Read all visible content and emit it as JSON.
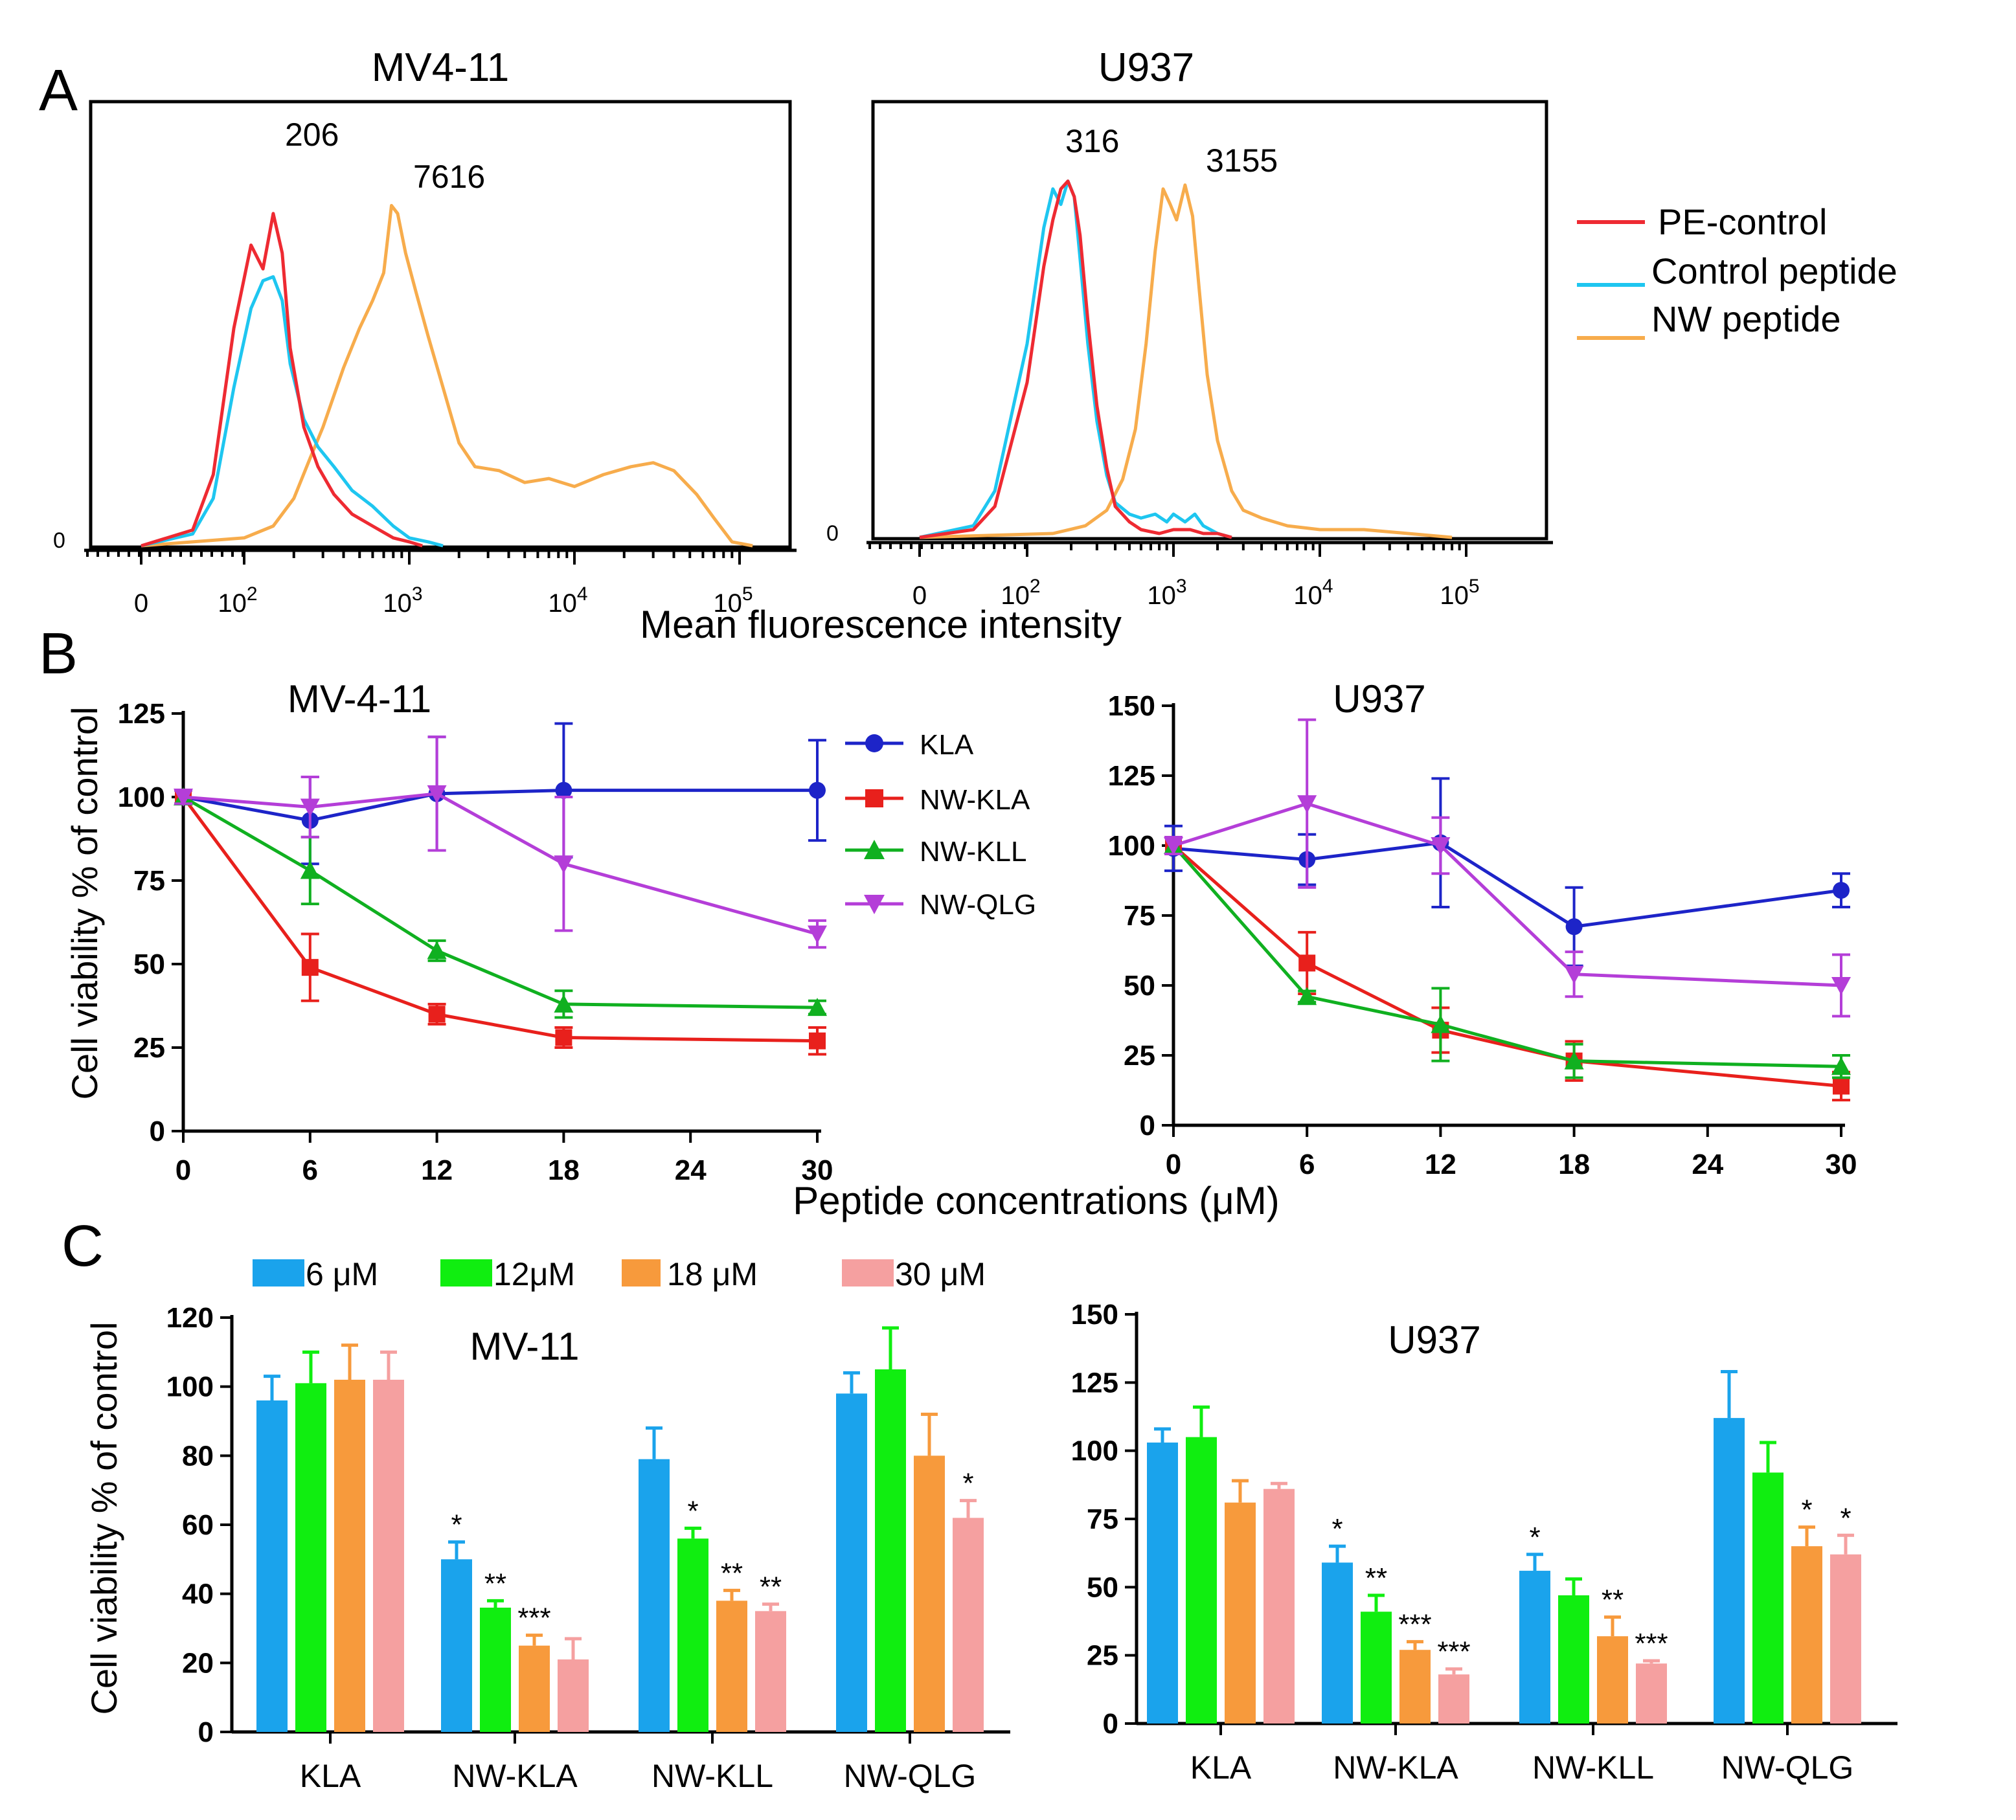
{
  "panel_labels": {
    "a": "A",
    "b": "B",
    "c": "C"
  },
  "colors": {
    "pe_control": "#ee2a32",
    "control_peptide": "#1ec6f0",
    "nw_peptide": "#f7ac4c",
    "kla": "#1d24c8",
    "nw_kla": "#e8201c",
    "nw_kll": "#10b020",
    "nw_qlg": "#b43ed8",
    "bar_6": "#1aa3ec",
    "bar_12": "#10ee10",
    "bar_18": "#f79a3c",
    "bar_30": "#f5a0a0"
  },
  "chart_data": [
    {
      "type": "line",
      "panel": "A",
      "title": "MV4-11",
      "xscale": "log",
      "x_tick_labels": [
        "0",
        "10^2",
        "10^3",
        "10^4",
        "10^5"
      ],
      "y_tick_labels": [
        "0"
      ],
      "series": [
        {
          "name": "PE-control",
          "peak_label": "206",
          "x": [
            0,
            50,
            70,
            90,
            110,
            130,
            150,
            170,
            190,
            230,
            280,
            350,
            450,
            600,
            800,
            1000,
            1200
          ],
          "y": [
            0,
            4,
            18,
            55,
            76,
            70,
            84,
            74,
            50,
            30,
            20,
            13,
            8,
            5,
            2,
            1,
            0
          ]
        },
        {
          "name": "Control peptide",
          "peak_label": "",
          "x": [
            0,
            50,
            70,
            90,
            110,
            130,
            150,
            170,
            190,
            230,
            280,
            350,
            450,
            600,
            800,
            1000,
            1300,
            1600
          ],
          "y": [
            0,
            3,
            12,
            40,
            60,
            67,
            68,
            62,
            46,
            32,
            25,
            20,
            14,
            10,
            5,
            2,
            1,
            0
          ]
        },
        {
          "name": "NW peptide",
          "peak_label": "7616",
          "x": [
            0,
            100,
            150,
            200,
            250,
            300,
            400,
            500,
            600,
            700,
            780,
            850,
            950,
            1100,
            1300,
            1600,
            2000,
            2500,
            3500,
            5000,
            7000,
            10000,
            15000,
            22000,
            30000,
            40000,
            55000,
            70000,
            90000,
            120000
          ],
          "y": [
            0,
            2,
            5,
            12,
            22,
            30,
            45,
            55,
            62,
            69,
            86,
            84,
            74,
            64,
            53,
            40,
            26,
            20,
            19,
            16,
            17,
            15,
            18,
            20,
            21,
            19,
            13,
            7,
            1,
            0
          ]
        }
      ]
    },
    {
      "type": "line",
      "panel": "A",
      "title": "U937",
      "xscale": "log",
      "x_tick_labels": [
        "0",
        "10^2",
        "10^3",
        "10^4",
        "10^5"
      ],
      "y_tick_labels": [
        "0"
      ],
      "xlabel": "Mean fluorescence intensity",
      "series": [
        {
          "name": "PE-control",
          "peak_label": "",
          "x": [
            0,
            50,
            70,
            100,
            130,
            150,
            170,
            190,
            210,
            230,
            260,
            300,
            350,
            400,
            500,
            600,
            800,
            1000,
            1300,
            1600,
            2000,
            2500
          ],
          "y": [
            0,
            2,
            8,
            40,
            70,
            82,
            90,
            92,
            88,
            78,
            56,
            34,
            18,
            8,
            4,
            2,
            1,
            2,
            2,
            1,
            1,
            0
          ]
        },
        {
          "name": "Control peptide",
          "peak_label": "316",
          "x": [
            0,
            50,
            70,
            100,
            130,
            150,
            170,
            190,
            210,
            230,
            260,
            300,
            350,
            400,
            500,
            600,
            750,
            900,
            1000,
            1200,
            1400,
            1600,
            2000,
            2500
          ],
          "y": [
            0,
            3,
            12,
            50,
            80,
            90,
            86,
            92,
            88,
            72,
            50,
            30,
            16,
            9,
            6,
            5,
            6,
            4,
            6,
            4,
            6,
            3,
            1,
            0
          ]
        },
        {
          "name": "NW peptide",
          "peak_label": "3155",
          "x": [
            0,
            150,
            250,
            350,
            450,
            550,
            650,
            750,
            850,
            950,
            1050,
            1200,
            1350,
            1500,
            1700,
            2000,
            2500,
            3000,
            4000,
            6000,
            10000,
            20000,
            40000,
            80000
          ],
          "y": [
            0,
            1,
            3,
            7,
            15,
            28,
            50,
            74,
            90,
            86,
            82,
            91,
            83,
            64,
            42,
            25,
            12,
            7,
            5,
            3,
            2,
            2,
            1,
            0
          ]
        }
      ]
    },
    {
      "type": "line",
      "panel": "B",
      "title": "MV-4-11",
      "ylabel": "Cell viability % of control",
      "ylim": [
        0,
        125
      ],
      "yticks": [
        0,
        25,
        50,
        75,
        100,
        125
      ],
      "xticks": [
        0,
        6,
        12,
        18,
        24,
        30
      ],
      "xlim": [
        0,
        30
      ],
      "series": [
        {
          "name": "KLA",
          "marker": "circle",
          "x": [
            0,
            6,
            12,
            18,
            30
          ],
          "y": [
            100,
            93,
            101,
            102,
            102
          ],
          "err": [
            2,
            13,
            17,
            20,
            15
          ]
        },
        {
          "name": "NW-KLA",
          "marker": "square",
          "x": [
            0,
            6,
            12,
            18,
            30
          ],
          "y": [
            100,
            49,
            35,
            28,
            27
          ],
          "err": [
            2,
            10,
            3,
            3,
            4
          ]
        },
        {
          "name": "NW-KLL",
          "marker": "triangle-up",
          "x": [
            0,
            6,
            12,
            18,
            30
          ],
          "y": [
            100,
            78,
            54,
            38,
            37
          ],
          "err": [
            2,
            10,
            3,
            4,
            2
          ]
        },
        {
          "name": "NW-QLG",
          "marker": "triangle-down",
          "x": [
            0,
            6,
            12,
            18,
            30
          ],
          "y": [
            100,
            97,
            101,
            80,
            59
          ],
          "err": [
            2,
            9,
            17,
            20,
            4
          ]
        }
      ]
    },
    {
      "type": "line",
      "panel": "B",
      "title": "U937",
      "xlabel": "Peptide concentrations (μM)",
      "ylim": [
        0,
        150
      ],
      "yticks": [
        0,
        25,
        50,
        75,
        100,
        125,
        150
      ],
      "xticks": [
        0,
        6,
        12,
        18,
        24,
        30
      ],
      "xlim": [
        0,
        30
      ],
      "series": [
        {
          "name": "KLA",
          "marker": "circle",
          "x": [
            0,
            6,
            12,
            18,
            30
          ],
          "y": [
            99,
            95,
            101,
            71,
            84
          ],
          "err": [
            8,
            9,
            23,
            14,
            6
          ]
        },
        {
          "name": "NW-KLA",
          "marker": "square",
          "x": [
            0,
            6,
            12,
            18,
            30
          ],
          "y": [
            100,
            58,
            34,
            23,
            14
          ],
          "err": [
            3,
            11,
            8,
            7,
            5
          ]
        },
        {
          "name": "NW-KLL",
          "marker": "triangle-up",
          "x": [
            0,
            6,
            12,
            18,
            30
          ],
          "y": [
            100,
            46,
            36,
            23,
            21
          ],
          "err": [
            3,
            2,
            13,
            6,
            4
          ]
        },
        {
          "name": "NW-QLG",
          "marker": "triangle-down",
          "x": [
            0,
            6,
            12,
            18,
            30
          ],
          "y": [
            100,
            115,
            100,
            54,
            50
          ],
          "err": [
            3,
            30,
            10,
            8,
            11
          ]
        }
      ]
    },
    {
      "type": "bar",
      "panel": "C",
      "title": "MV-11",
      "ylabel": "Cell viability % of control",
      "ylim": [
        0,
        120
      ],
      "yticks": [
        0,
        20,
        40,
        60,
        80,
        100,
        120
      ],
      "categories": [
        "KLA",
        "NW-KLA",
        "NW-KLL",
        "NW-QLG"
      ],
      "series": [
        {
          "name": "6 μM",
          "values": [
            96,
            50,
            79,
            98
          ],
          "err": [
            7,
            5,
            9,
            6
          ],
          "sig": [
            "",
            "*",
            "",
            ""
          ]
        },
        {
          "name": "12μM",
          "values": [
            101,
            36,
            56,
            105
          ],
          "err": [
            9,
            2,
            3,
            12
          ],
          "sig": [
            "",
            "**",
            "*",
            ""
          ]
        },
        {
          "name": "18 μM",
          "values": [
            102,
            25,
            38,
            80
          ],
          "err": [
            10,
            3,
            3,
            12
          ],
          "sig": [
            "",
            "***",
            "**",
            ""
          ]
        },
        {
          "name": "30 μM",
          "values": [
            102,
            21,
            35,
            62
          ],
          "err": [
            8,
            6,
            2,
            5
          ],
          "sig": [
            "",
            "",
            "**",
            "*"
          ]
        }
      ]
    },
    {
      "type": "bar",
      "panel": "C",
      "title": "U937",
      "ylim": [
        0,
        150
      ],
      "yticks": [
        0,
        25,
        50,
        75,
        100,
        125,
        150
      ],
      "categories": [
        "KLA",
        "NW-KLA",
        "NW-KLL",
        "NW-QLG"
      ],
      "series": [
        {
          "name": "6 μM",
          "values": [
            103,
            59,
            56,
            112
          ],
          "err": [
            5,
            6,
            6,
            17
          ],
          "sig": [
            "",
            "*",
            "*",
            ""
          ]
        },
        {
          "name": "12μM",
          "values": [
            105,
            41,
            47,
            92
          ],
          "err": [
            11,
            6,
            6,
            11
          ],
          "sig": [
            "",
            "**",
            "",
            ""
          ]
        },
        {
          "name": "18 μM",
          "values": [
            81,
            27,
            32,
            65
          ],
          "err": [
            8,
            3,
            7,
            7
          ],
          "sig": [
            "",
            "***",
            "**",
            "*"
          ]
        },
        {
          "name": "30 μM",
          "values": [
            86,
            18,
            22,
            62
          ],
          "err": [
            2,
            2,
            1,
            7
          ],
          "sig": [
            "",
            "***",
            "***",
            "*"
          ]
        }
      ]
    }
  ]
}
